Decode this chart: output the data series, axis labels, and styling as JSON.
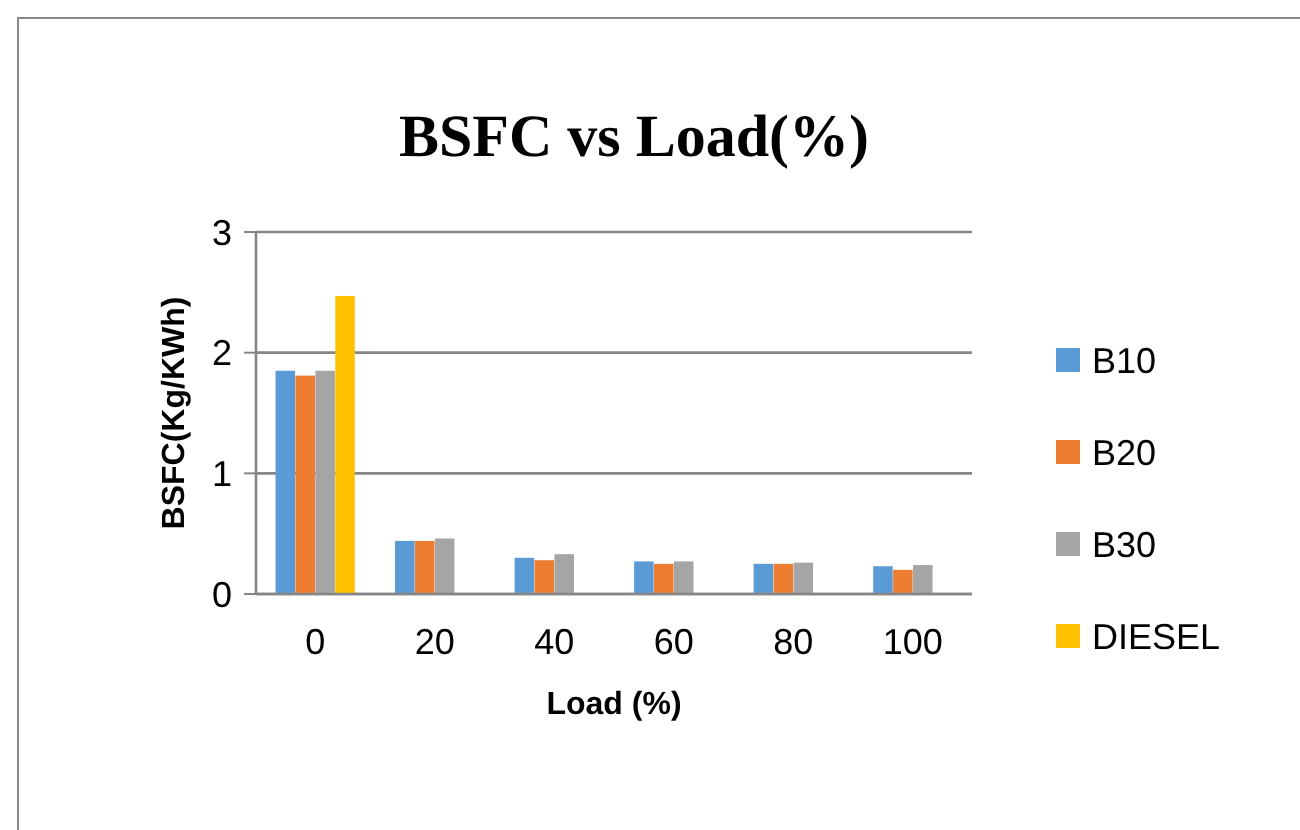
{
  "chart_data": {
    "type": "bar",
    "title": "BSFC vs Load(%)",
    "xlabel": "Load (%)",
    "ylabel": "BSFC(Kg/KWh)",
    "categories": [
      "0",
      "20",
      "40",
      "60",
      "80",
      "100"
    ],
    "series": [
      {
        "name": "B10",
        "color": "#5b9bd5",
        "values": [
          1.85,
          0.44,
          0.3,
          0.27,
          0.25,
          0.23
        ]
      },
      {
        "name": "B20",
        "color": "#ed7d31",
        "values": [
          1.81,
          0.44,
          0.28,
          0.25,
          0.25,
          0.2
        ]
      },
      {
        "name": "B30",
        "color": "#a5a5a5",
        "values": [
          1.85,
          0.46,
          0.33,
          0.27,
          0.26,
          0.24
        ]
      },
      {
        "name": "DIESEL",
        "color": "#ffc000",
        "values": [
          2.47,
          null,
          null,
          null,
          null,
          null
        ]
      }
    ],
    "ylim": [
      0,
      3
    ],
    "yticks": [
      0,
      1,
      2,
      3
    ],
    "grid": "y",
    "legend": "right"
  }
}
